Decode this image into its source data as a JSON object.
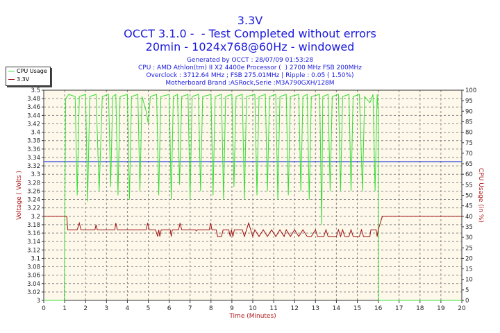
{
  "header": {
    "title": "3.3V",
    "subtitle1": "OCCT 3.1.0 -  - Test Completed without errors",
    "subtitle2": "20min - 1024x768@60Hz - windowed",
    "info1": "Generated by OCCT : 28/07/09 01:53:28",
    "info2": "CPU : AMD Athlon(tm) II X2 4400e Processor (  ) 2700 MHz FSB 200MHz",
    "info3": "Overclock : 3712.64 MHz ; FSB 275.01MHz | Ripple : 0.05 ( 1.50%)",
    "info4": "Motherboard Brand :ASRock,Serie :M3A790GXH/128M"
  },
  "legend": [
    {
      "label": "CPU Usage",
      "color": "#33dd33"
    },
    {
      "label": "3.3V",
      "color": "#a01010"
    }
  ],
  "colors": {
    "background": "#fdf8ea",
    "grid": "#888888",
    "reference": "#3344dd",
    "axis_label": "#b01818"
  },
  "chart_data": {
    "type": "line",
    "xlabel": "Time (Minutes)",
    "ylabel": "Voltage ( Volts )",
    "ylabel_right": "CPU Usage (in %)",
    "xlim": [
      0,
      20
    ],
    "ylim": [
      3.0,
      3.5
    ],
    "ylim_right": [
      0,
      100
    ],
    "x_ticks": [
      0,
      1,
      2,
      3,
      4,
      5,
      6,
      7,
      8,
      9,
      10,
      11,
      12,
      13,
      14,
      15,
      16,
      17,
      18,
      19,
      20
    ],
    "y_ticks": [
      "3",
      "3.02",
      "3.04",
      "3.06",
      "3.08",
      "3.1",
      "3.12",
      "3.14",
      "3.16",
      "3.18",
      "3.2",
      "3.22",
      "3.24",
      "3.26",
      "3.28",
      "3.3",
      "3.32",
      "3.34",
      "3.36",
      "3.38",
      "3.4",
      "3.42",
      "3.44",
      "3.46",
      "3.48",
      "3.5"
    ],
    "y_ticks_right": [
      "0",
      "5",
      "10",
      "15",
      "20",
      "25",
      "30",
      "35",
      "40",
      "45",
      "50",
      "55",
      "60",
      "65",
      "70",
      "75",
      "80",
      "85",
      "90",
      "95",
      "100"
    ],
    "grid": true,
    "legend_position": "top-left",
    "reference_line": {
      "y": 3.33
    },
    "series": [
      {
        "name": "CPU Usage",
        "axis": "right",
        "color": "#33dd33",
        "points": [
          [
            0,
            0
          ],
          [
            0.98,
            0
          ],
          [
            1.05,
            96
          ],
          [
            1.2,
            98
          ],
          [
            1.5,
            97
          ],
          [
            1.6,
            50
          ],
          [
            1.7,
            97
          ],
          [
            2.0,
            98
          ],
          [
            2.1,
            47
          ],
          [
            2.2,
            97
          ],
          [
            2.5,
            98
          ],
          [
            2.65,
            52
          ],
          [
            2.8,
            97
          ],
          [
            3.1,
            98
          ],
          [
            3.2,
            54
          ],
          [
            3.3,
            97
          ],
          [
            3.45,
            98
          ],
          [
            3.55,
            50
          ],
          [
            3.65,
            97
          ],
          [
            4.0,
            98
          ],
          [
            4.1,
            48
          ],
          [
            4.2,
            97
          ],
          [
            4.5,
            98
          ],
          [
            4.6,
            52
          ],
          [
            4.7,
            97
          ],
          [
            4.9,
            90
          ],
          [
            5.0,
            84
          ],
          [
            5.1,
            97
          ],
          [
            5.4,
            98
          ],
          [
            5.5,
            50
          ],
          [
            5.6,
            97
          ],
          [
            6.0,
            98
          ],
          [
            6.1,
            48
          ],
          [
            6.2,
            97
          ],
          [
            6.4,
            98
          ],
          [
            6.5,
            55
          ],
          [
            6.6,
            97
          ],
          [
            6.9,
            98
          ],
          [
            7.0,
            48
          ],
          [
            7.1,
            97
          ],
          [
            7.4,
            98
          ],
          [
            7.5,
            52
          ],
          [
            7.6,
            97
          ],
          [
            8.0,
            98
          ],
          [
            8.1,
            50
          ],
          [
            8.2,
            97
          ],
          [
            8.5,
            98
          ],
          [
            8.6,
            48
          ],
          [
            8.7,
            97
          ],
          [
            9.0,
            98
          ],
          [
            9.1,
            54
          ],
          [
            9.2,
            97
          ],
          [
            9.5,
            98
          ],
          [
            9.6,
            48
          ],
          [
            9.7,
            97
          ],
          [
            10.1,
            98
          ],
          [
            10.2,
            50
          ],
          [
            10.3,
            97
          ],
          [
            10.6,
            98
          ],
          [
            10.7,
            52
          ],
          [
            10.8,
            97
          ],
          [
            11.1,
            98
          ],
          [
            11.2,
            48
          ],
          [
            11.3,
            97
          ],
          [
            11.6,
            98
          ],
          [
            11.7,
            50
          ],
          [
            11.8,
            97
          ],
          [
            12.2,
            98
          ],
          [
            12.3,
            52
          ],
          [
            12.4,
            97
          ],
          [
            12.6,
            98
          ],
          [
            12.7,
            48
          ],
          [
            12.8,
            97
          ],
          [
            13.2,
            98
          ],
          [
            13.3,
            36
          ],
          [
            13.35,
            97
          ],
          [
            13.6,
            98
          ],
          [
            13.7,
            52
          ],
          [
            13.8,
            97
          ],
          [
            14.1,
            98
          ],
          [
            14.2,
            52
          ],
          [
            14.3,
            97
          ],
          [
            14.6,
            98
          ],
          [
            14.7,
            52
          ],
          [
            14.8,
            97
          ],
          [
            15.1,
            98
          ],
          [
            15.25,
            52
          ],
          [
            15.35,
            97
          ],
          [
            15.6,
            94
          ],
          [
            15.75,
            98
          ],
          [
            15.85,
            52
          ],
          [
            15.95,
            98
          ],
          [
            16.0,
            90
          ],
          [
            16.02,
            0
          ],
          [
            20,
            0
          ]
        ]
      },
      {
        "name": "3.3V",
        "axis": "left",
        "color": "#a01010",
        "points": [
          [
            0,
            3.2
          ],
          [
            1.1,
            3.2
          ],
          [
            1.15,
            3.168
          ],
          [
            1.6,
            3.168
          ],
          [
            1.7,
            3.184
          ],
          [
            1.78,
            3.168
          ],
          [
            2.45,
            3.168
          ],
          [
            2.5,
            3.18
          ],
          [
            2.56,
            3.168
          ],
          [
            3.4,
            3.168
          ],
          [
            3.45,
            3.184
          ],
          [
            3.52,
            3.168
          ],
          [
            4.9,
            3.168
          ],
          [
            4.97,
            3.184
          ],
          [
            5.05,
            3.168
          ],
          [
            5.35,
            3.168
          ],
          [
            5.45,
            3.152
          ],
          [
            5.5,
            3.168
          ],
          [
            5.55,
            3.152
          ],
          [
            5.62,
            3.168
          ],
          [
            6.05,
            3.168
          ],
          [
            6.1,
            3.152
          ],
          [
            6.15,
            3.168
          ],
          [
            6.45,
            3.168
          ],
          [
            6.52,
            3.184
          ],
          [
            6.6,
            3.168
          ],
          [
            7.25,
            3.168
          ],
          [
            7.3,
            3.165
          ],
          [
            7.35,
            3.168
          ],
          [
            7.92,
            3.168
          ],
          [
            7.98,
            3.184
          ],
          [
            8.05,
            3.168
          ],
          [
            8.25,
            3.168
          ],
          [
            8.32,
            3.152
          ],
          [
            8.5,
            3.152
          ],
          [
            8.58,
            3.168
          ],
          [
            8.85,
            3.168
          ],
          [
            8.92,
            3.152
          ],
          [
            8.98,
            3.168
          ],
          [
            9.05,
            3.152
          ],
          [
            9.12,
            3.168
          ],
          [
            9.5,
            3.168
          ],
          [
            9.6,
            3.152
          ],
          [
            9.7,
            3.168
          ],
          [
            9.8,
            3.184
          ],
          [
            9.9,
            3.168
          ],
          [
            10.0,
            3.152
          ],
          [
            10.1,
            3.168
          ],
          [
            10.3,
            3.152
          ],
          [
            10.5,
            3.168
          ],
          [
            10.7,
            3.152
          ],
          [
            10.9,
            3.168
          ],
          [
            11.1,
            3.152
          ],
          [
            11.3,
            3.168
          ],
          [
            11.5,
            3.152
          ],
          [
            11.6,
            3.168
          ],
          [
            11.8,
            3.152
          ],
          [
            12.0,
            3.168
          ],
          [
            12.2,
            3.152
          ],
          [
            12.4,
            3.168
          ],
          [
            12.6,
            3.152
          ],
          [
            12.8,
            3.152
          ],
          [
            13.0,
            3.168
          ],
          [
            13.1,
            3.152
          ],
          [
            13.4,
            3.152
          ],
          [
            13.5,
            3.168
          ],
          [
            13.6,
            3.152
          ],
          [
            14.0,
            3.152
          ],
          [
            14.1,
            3.168
          ],
          [
            14.2,
            3.152
          ],
          [
            14.3,
            3.168
          ],
          [
            14.4,
            3.152
          ],
          [
            14.6,
            3.152
          ],
          [
            14.7,
            3.168
          ],
          [
            14.8,
            3.152
          ],
          [
            15.1,
            3.152
          ],
          [
            15.2,
            3.168
          ],
          [
            15.3,
            3.152
          ],
          [
            15.6,
            3.152
          ],
          [
            15.65,
            3.168
          ],
          [
            15.9,
            3.168
          ],
          [
            15.95,
            3.152
          ],
          [
            16.0,
            3.168
          ],
          [
            16.1,
            3.184
          ],
          [
            16.2,
            3.2
          ],
          [
            20,
            3.2
          ]
        ]
      }
    ]
  }
}
